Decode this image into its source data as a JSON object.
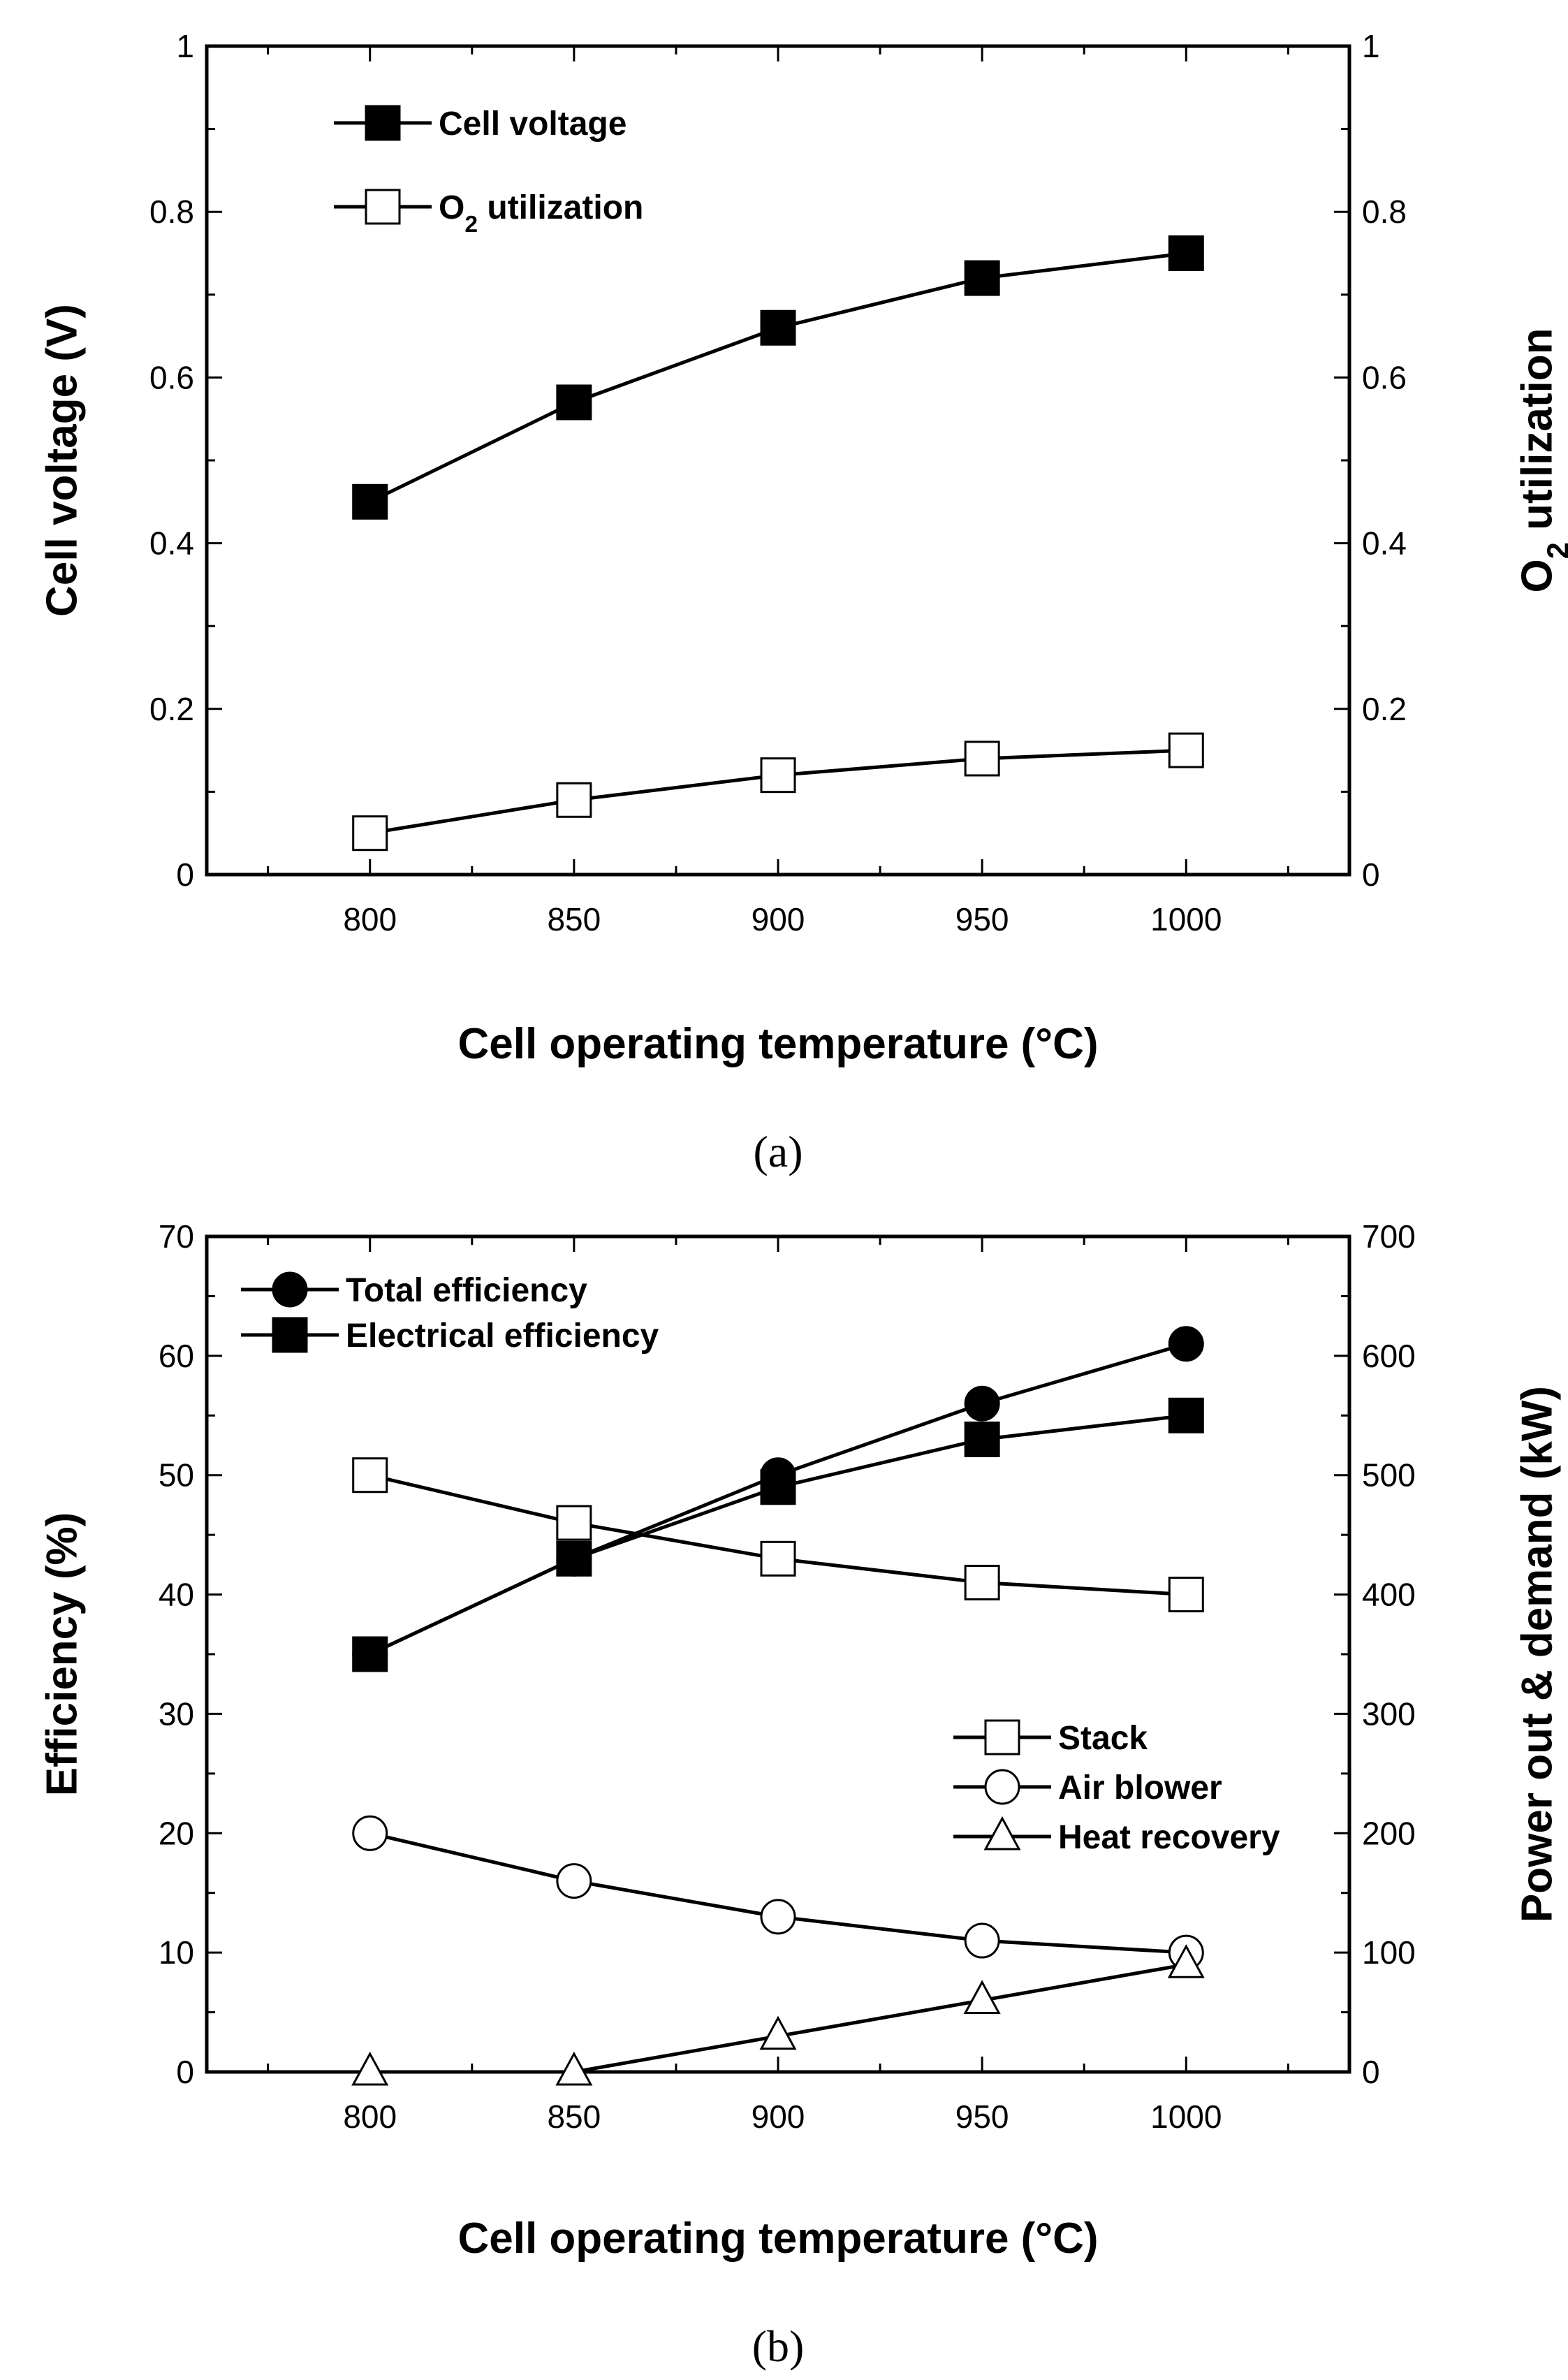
{
  "chart_data": [
    {
      "type": "line",
      "panel_label": "(a)",
      "xlabel": "Cell operating temperature (°C)",
      "ylabel": "Cell voltage (V)",
      "ylabel_right": "O₂ utilization",
      "xlim": [
        760,
        1040
      ],
      "ylim": [
        0,
        1
      ],
      "ylim_right": [
        0,
        1
      ],
      "x_ticks": [
        800,
        850,
        900,
        950,
        1000
      ],
      "y_ticks": [
        "0",
        "0.2",
        "0.4",
        "0.6",
        "0.8",
        "1"
      ],
      "y_ticks_right": [
        "0",
        "0.2",
        "0.4",
        "0.6",
        "0.8",
        "1"
      ],
      "legend_position": "top-left",
      "series": [
        {
          "name": "Cell voltage",
          "axis": "left",
          "marker": "square-filled",
          "x": [
            800,
            850,
            900,
            950,
            1000
          ],
          "values": [
            0.45,
            0.57,
            0.66,
            0.72,
            0.75
          ]
        },
        {
          "name": "O₂ utilization",
          "axis": "right",
          "marker": "square-open",
          "x": [
            800,
            850,
            900,
            950,
            1000
          ],
          "values": [
            0.05,
            0.09,
            0.12,
            0.14,
            0.15
          ]
        }
      ]
    },
    {
      "type": "line",
      "panel_label": "(b)",
      "xlabel": "Cell operating temperature (°C)",
      "ylabel": "Efficiency (%)",
      "ylabel_right": "Power out & demand (kW)",
      "xlim": [
        760,
        1040
      ],
      "ylim": [
        0,
        70
      ],
      "ylim_right": [
        0,
        700
      ],
      "x_ticks": [
        800,
        850,
        900,
        950,
        1000
      ],
      "y_ticks": [
        "0",
        "10",
        "20",
        "30",
        "40",
        "50",
        "60",
        "70"
      ],
      "y_ticks_right": [
        "0",
        "100",
        "200",
        "300",
        "400",
        "500",
        "600",
        "700"
      ],
      "legend_position": "top-left and center-right",
      "series": [
        {
          "name": "Total efficiency",
          "axis": "left",
          "marker": "circle-filled",
          "x": [
            800,
            850,
            900,
            950,
            1000
          ],
          "values": [
            35,
            43,
            50,
            56,
            61
          ]
        },
        {
          "name": "Electrical efficiency",
          "axis": "left",
          "marker": "square-filled",
          "x": [
            800,
            850,
            900,
            950,
            1000
          ],
          "values": [
            35,
            43,
            49,
            53,
            55
          ]
        },
        {
          "name": "Stack",
          "axis": "right",
          "marker": "square-open",
          "x": [
            800,
            850,
            900,
            950,
            1000
          ],
          "values": [
            500,
            460,
            430,
            410,
            400
          ]
        },
        {
          "name": "Air blower",
          "axis": "right",
          "marker": "circle-open",
          "x": [
            800,
            850,
            900,
            950,
            1000
          ],
          "values": [
            200,
            160,
            130,
            110,
            100
          ]
        },
        {
          "name": "Heat recovery",
          "axis": "right",
          "marker": "triangle-open",
          "x": [
            800,
            850,
            900,
            950,
            1000
          ],
          "values": [
            0,
            0,
            30,
            60,
            90
          ]
        }
      ]
    }
  ]
}
